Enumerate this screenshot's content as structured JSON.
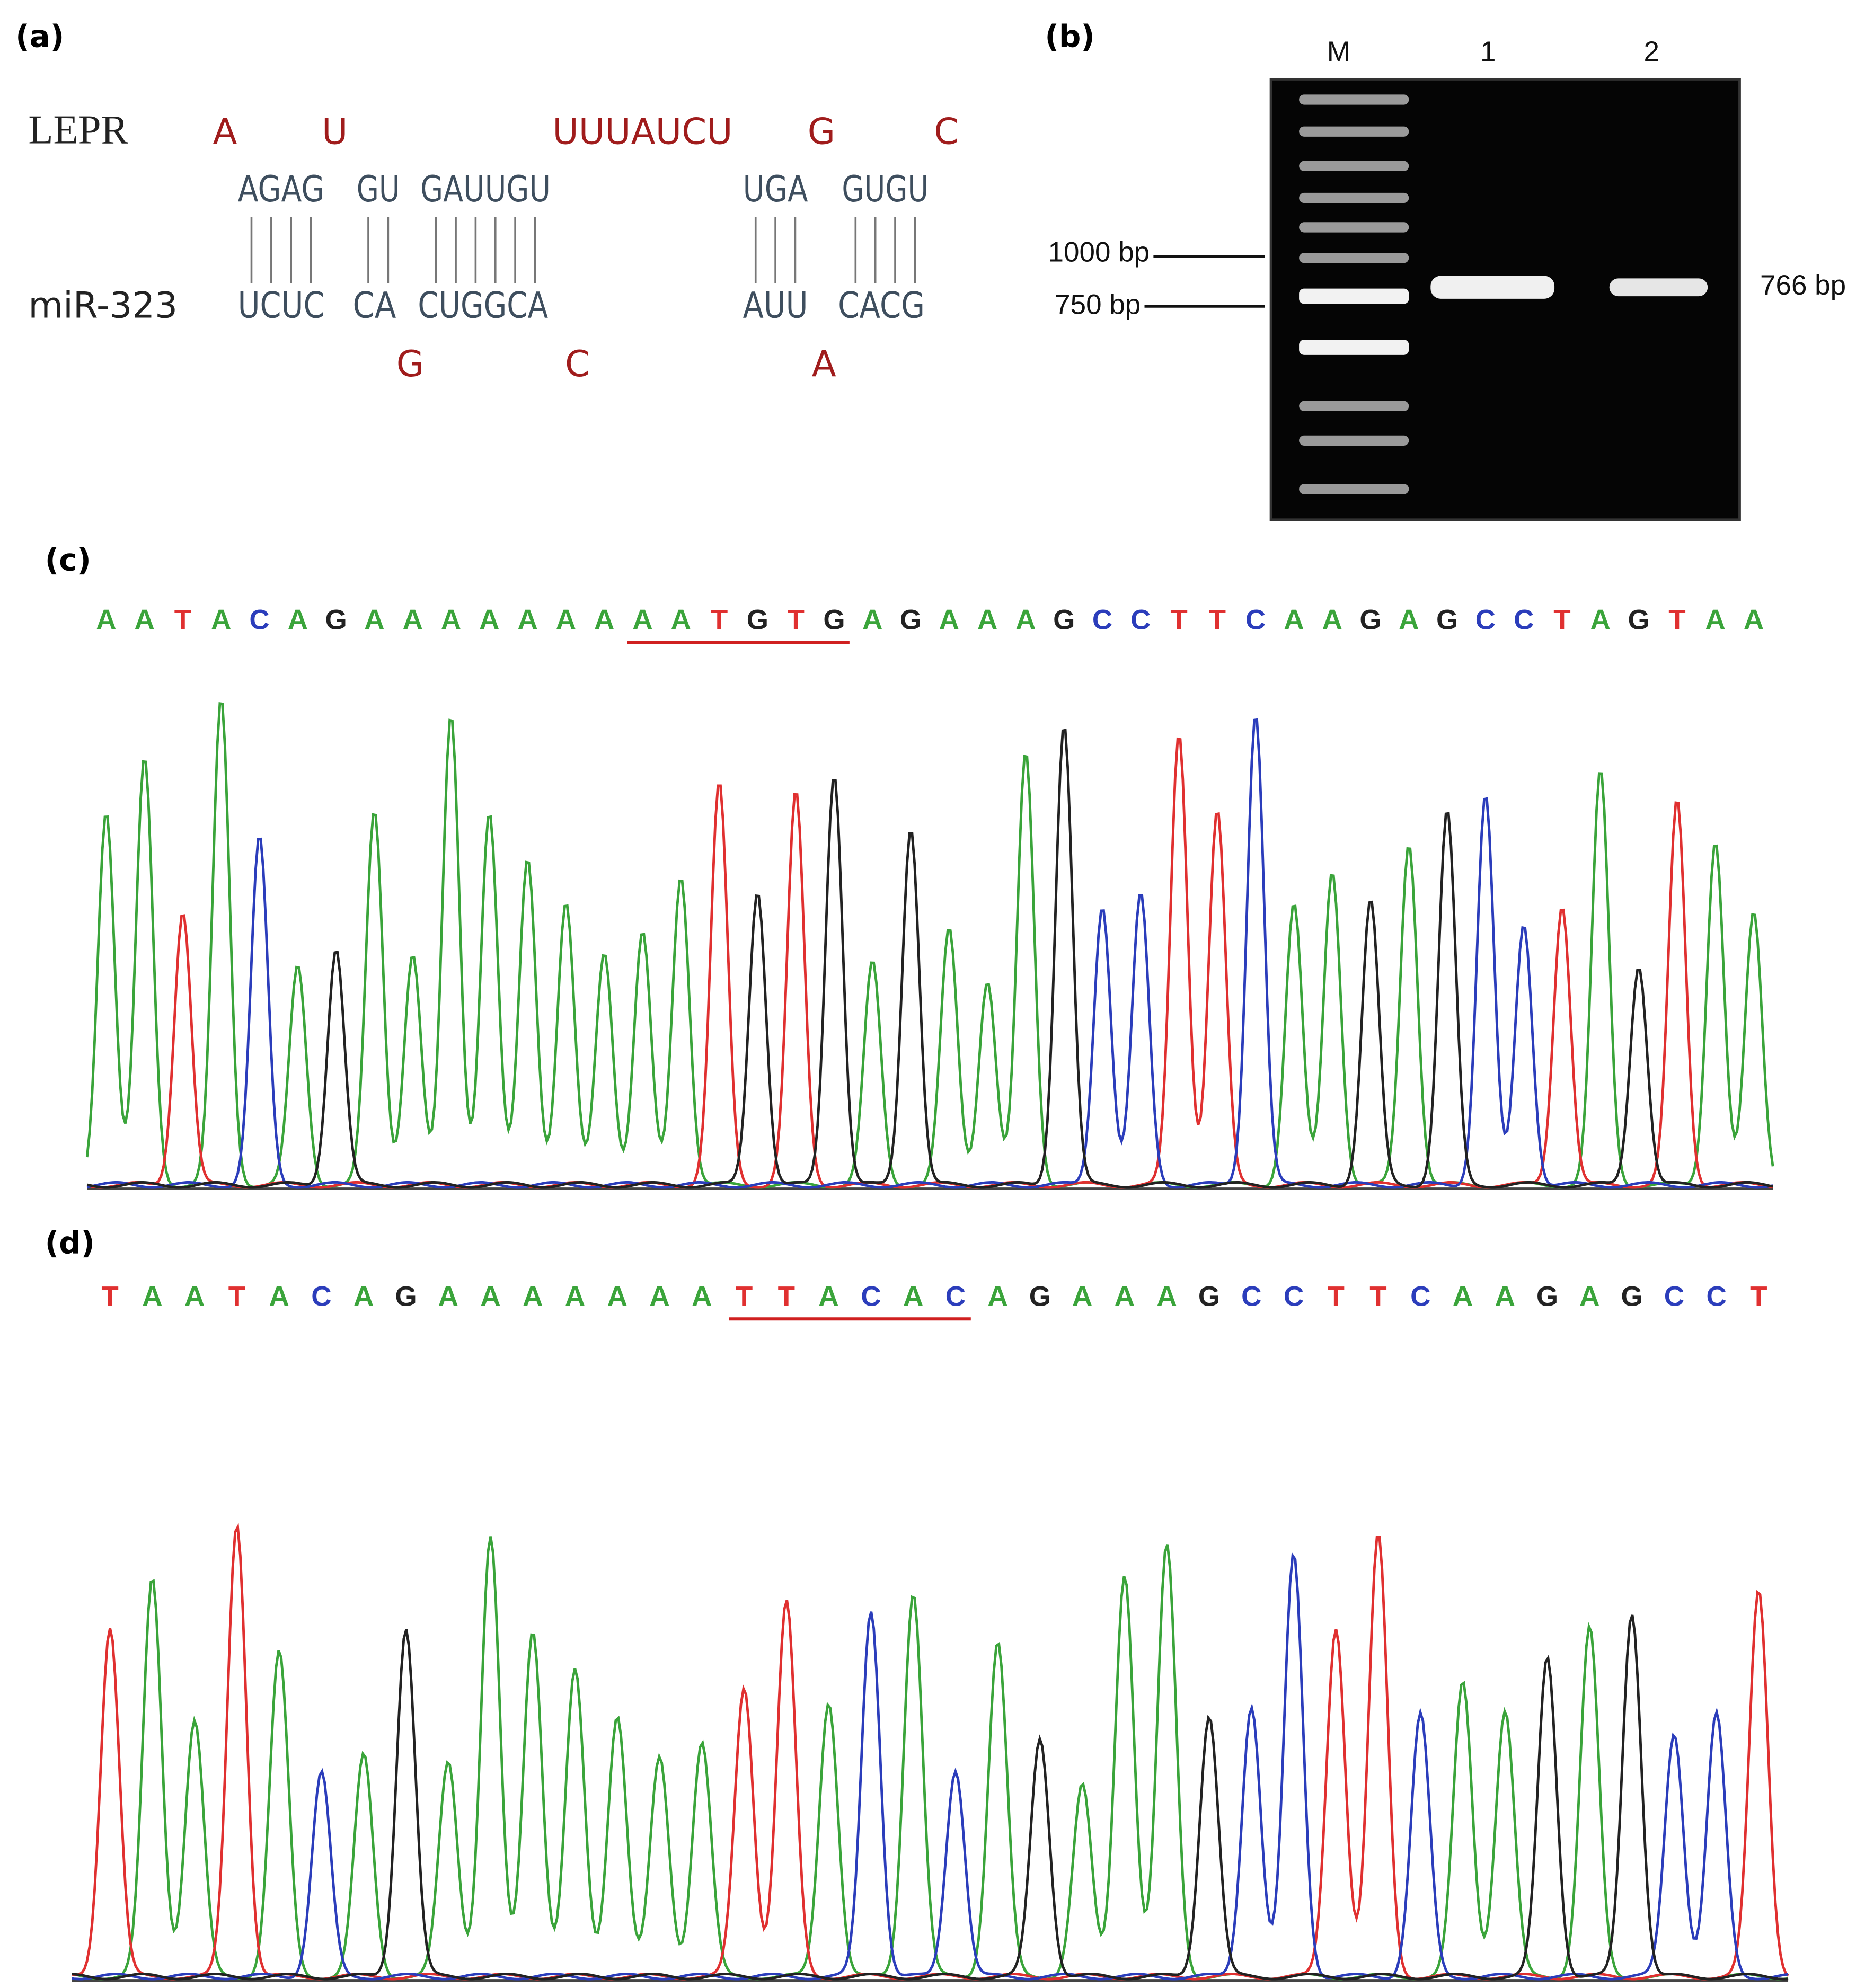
{
  "panel_a": {
    "label": "(a)",
    "target_name": "LEPR",
    "mirna_name": "miR-323",
    "target_unpaired": [
      "A",
      "U",
      "UUUAUCU",
      "G",
      "C"
    ],
    "target_paired": [
      "AGAG",
      "GU",
      "GAUUGU",
      "UGA",
      "GUGU"
    ],
    "mirna_paired": [
      "UCUC",
      "CA",
      "CUGGCA",
      "AUU",
      "CACG"
    ],
    "mirna_unpaired": [
      "G",
      "C",
      "A"
    ]
  },
  "panel_b": {
    "label": "(b)",
    "lanes": [
      "M",
      "1",
      "2"
    ],
    "markers": [
      "1000 bp",
      "750 bp"
    ],
    "product": "766 bp"
  },
  "panel_c": {
    "label": "(c)",
    "segments": [
      {
        "bases": [
          "A",
          "A",
          "T",
          "A",
          "C",
          "A",
          "G",
          "A",
          "A",
          "A",
          "A",
          "A",
          "A",
          "A"
        ],
        "underlined": false
      },
      {
        "bases": [
          "A",
          "A",
          "T",
          "G",
          "T",
          "G"
        ],
        "underlined": true
      },
      {
        "bases": [
          "A",
          "G",
          "A",
          "A",
          "A",
          "G",
          "C",
          "C",
          "T",
          "T",
          "C",
          "A",
          "A",
          "G",
          "A",
          "G",
          "C",
          "C",
          "T",
          "A",
          "G",
          "T",
          "A",
          "A"
        ],
        "underlined": false
      }
    ]
  },
  "panel_d": {
    "label": "(d)",
    "segments": [
      {
        "bases": [
          "T",
          "A",
          "A",
          "T",
          "A",
          "C",
          "A",
          "G",
          "A",
          "A",
          "A",
          "A",
          "A",
          "A",
          "A"
        ],
        "underlined": false
      },
      {
        "bases": [
          "T",
          "T",
          "A",
          "C",
          "A",
          "C"
        ],
        "underlined": true
      },
      {
        "bases": [
          "A",
          "G",
          "A",
          "A",
          "A",
          "G",
          "C",
          "C",
          "T",
          "T",
          "C",
          "A",
          "A",
          "G",
          "A",
          "G",
          "C",
          "C",
          "T"
        ],
        "underlined": false
      }
    ]
  },
  "base_colors": {
    "A": "#3aa43a",
    "T": "#e03030",
    "C": "#2b3dbb",
    "G": "#222222"
  }
}
